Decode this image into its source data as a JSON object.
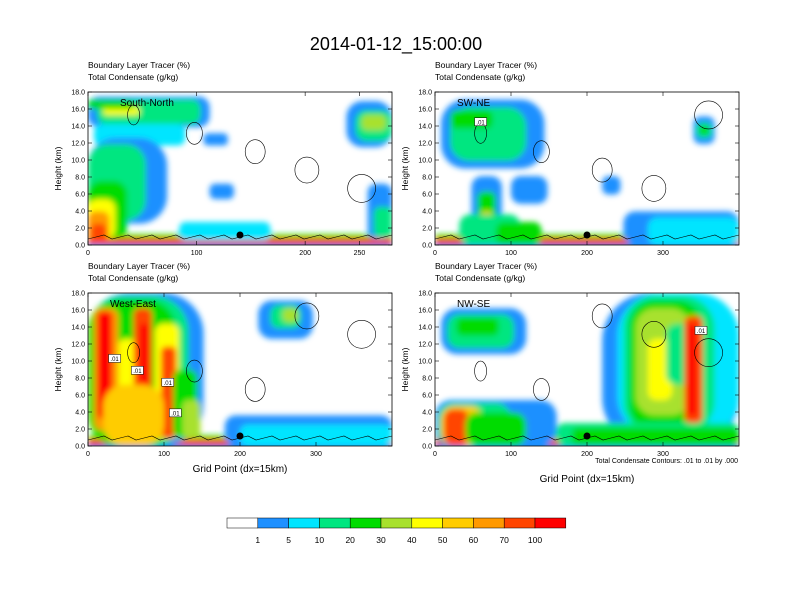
{
  "title": "2014-01-12_15:00:00",
  "panel_title_line1": "Boundary Layer Tracer   (%)",
  "panel_title_line2": "Total Condensate   (g/kg)",
  "ylabel": "Height (km)",
  "xlabel": "Grid Point (dx=15km)",
  "contour_note": "Total Condensate Contours: .01 to .01 by .000",
  "contour_label": ".01",
  "colors": [
    "#ffffff",
    "#1e90ff",
    "#00e5ff",
    "#00e680",
    "#00dc00",
    "#a8e12e",
    "#ffff00",
    "#ffcc00",
    "#ff9900",
    "#ff4500",
    "#ff0000"
  ],
  "chart_data": [
    {
      "type": "heatmap",
      "id": "south-north",
      "label": "South-North",
      "xlim": [
        0,
        280
      ],
      "ylim": [
        0,
        18
      ],
      "xticks": [
        0,
        100,
        200
      ],
      "xticks_extra": [
        250
      ],
      "yticks": [
        "0.0",
        "2.0",
        "4.0",
        "6.0",
        "8.0",
        "10.0",
        "12.0",
        "14.0",
        "16.0",
        "18.0"
      ],
      "marker_x": 140,
      "contour_labels": []
    },
    {
      "type": "heatmap",
      "id": "sw-ne",
      "label": "SW-NE",
      "xlim": [
        0,
        400
      ],
      "ylim": [
        0,
        18
      ],
      "xticks": [
        0,
        100,
        200,
        300
      ],
      "xticks_extra": [],
      "yticks": [
        "0.0",
        "2.0",
        "4.0",
        "6.0",
        "8.0",
        "10.0",
        "12.0",
        "14.0",
        "16.0",
        "18.0"
      ],
      "marker_x": 200,
      "contour_labels": [
        {
          "x": 60,
          "y": 14.5
        }
      ]
    },
    {
      "type": "heatmap",
      "id": "west-east",
      "label": "West-East",
      "xlim": [
        0,
        400
      ],
      "ylim": [
        0,
        18
      ],
      "xticks": [
        0,
        100,
        200,
        300
      ],
      "xticks_extra": [],
      "yticks": [
        "0.0",
        "2.0",
        "4.0",
        "6.0",
        "8.0",
        "10.0",
        "12.0",
        "14.0",
        "16.0",
        "18.0"
      ],
      "marker_x": 200,
      "contour_labels": [
        {
          "x": 35,
          "y": 10.3
        },
        {
          "x": 65,
          "y": 8.9
        },
        {
          "x": 105,
          "y": 7.5
        },
        {
          "x": 115,
          "y": 3.9
        }
      ]
    },
    {
      "type": "heatmap",
      "id": "nw-se",
      "label": "NW-SE",
      "xlim": [
        0,
        400
      ],
      "ylim": [
        0,
        18
      ],
      "xticks": [
        0,
        100,
        200,
        300
      ],
      "xticks_extra": [],
      "yticks": [
        "0.0",
        "2.0",
        "4.0",
        "6.0",
        "8.0",
        "10.0",
        "12.0",
        "14.0",
        "16.0",
        "18.0"
      ],
      "marker_x": 200,
      "contour_labels": [
        {
          "x": 350,
          "y": 13.6
        }
      ]
    }
  ],
  "legend": {
    "labels": [
      "1",
      "5",
      "10",
      "20",
      "30",
      "40",
      "50",
      "60",
      "70",
      "100"
    ]
  }
}
